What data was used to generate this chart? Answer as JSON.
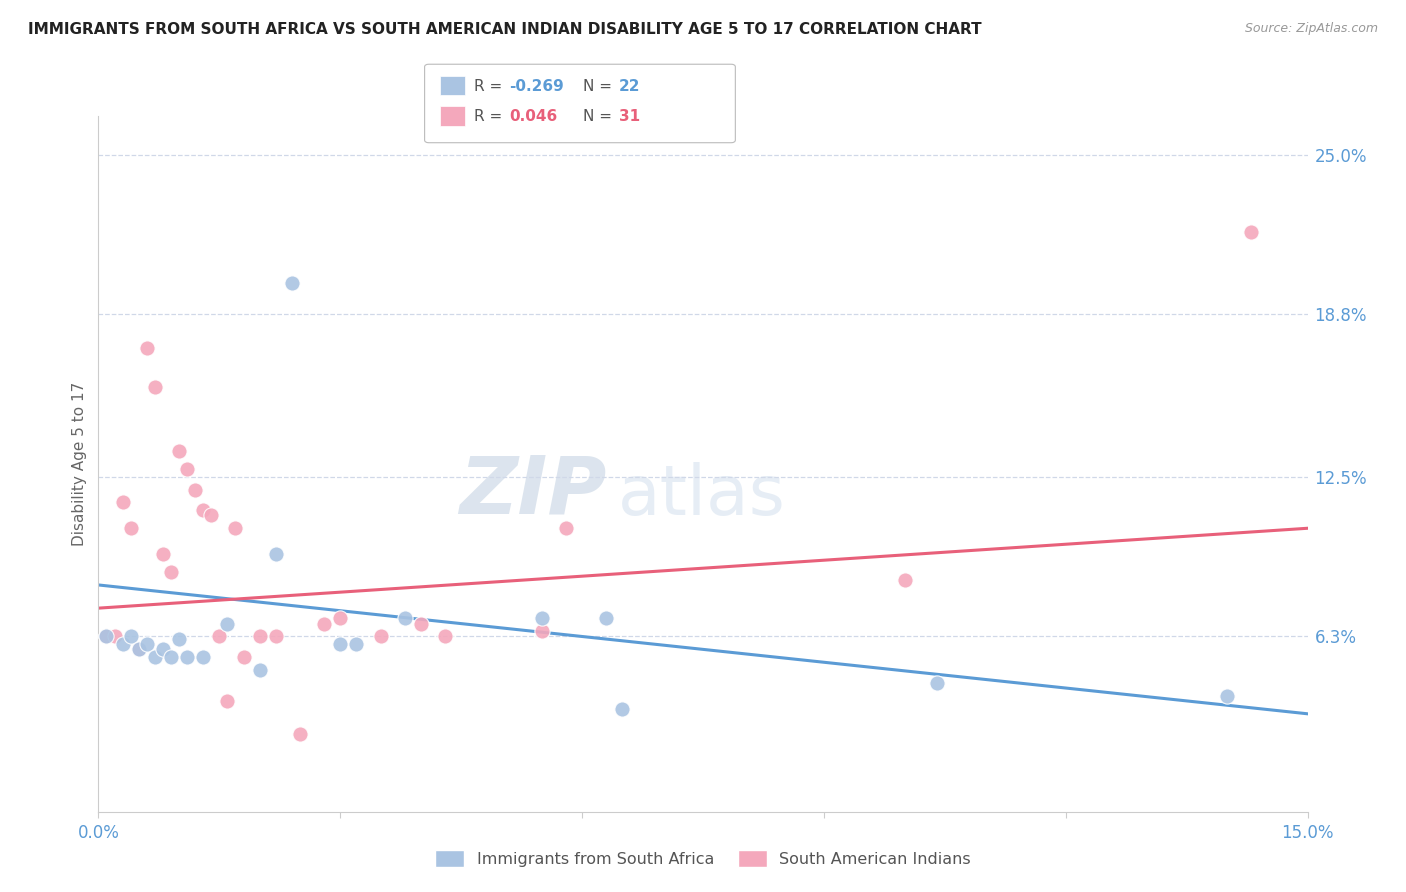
{
  "title": "IMMIGRANTS FROM SOUTH AFRICA VS SOUTH AMERICAN INDIAN DISABILITY AGE 5 TO 17 CORRELATION CHART",
  "source": "Source: ZipAtlas.com",
  "ylabel": "Disability Age 5 to 17",
  "xlim": [
    0.0,
    0.15
  ],
  "ylim": [
    -0.005,
    0.265
  ],
  "xticks": [
    0.0,
    0.03,
    0.06,
    0.09,
    0.12,
    0.15
  ],
  "xticklabels": [
    "0.0%",
    "",
    "",
    "",
    "",
    "15.0%"
  ],
  "yticks_right": [
    0.063,
    0.125,
    0.188,
    0.25
  ],
  "ytick_labels_right": [
    "6.3%",
    "12.5%",
    "18.8%",
    "25.0%"
  ],
  "blue_color": "#aac4e2",
  "pink_color": "#f4a8bc",
  "blue_line_color": "#5b9bd5",
  "pink_line_color": "#e8607a",
  "legend_blue_label": "Immigrants from South Africa",
  "legend_pink_label": "South American Indians",
  "watermark_zip": "ZIP",
  "watermark_atlas": "atlas",
  "blue_scatter_x": [
    0.001,
    0.003,
    0.004,
    0.005,
    0.006,
    0.007,
    0.008,
    0.009,
    0.01,
    0.011,
    0.013,
    0.016,
    0.02,
    0.022,
    0.024,
    0.03,
    0.032,
    0.038,
    0.055,
    0.063,
    0.065,
    0.104,
    0.14
  ],
  "blue_scatter_y": [
    0.063,
    0.06,
    0.063,
    0.058,
    0.06,
    0.055,
    0.058,
    0.055,
    0.062,
    0.055,
    0.055,
    0.068,
    0.05,
    0.095,
    0.2,
    0.06,
    0.06,
    0.07,
    0.07,
    0.07,
    0.035,
    0.045,
    0.04
  ],
  "pink_scatter_x": [
    0.001,
    0.001,
    0.002,
    0.003,
    0.004,
    0.005,
    0.006,
    0.007,
    0.008,
    0.009,
    0.01,
    0.011,
    0.012,
    0.013,
    0.014,
    0.015,
    0.016,
    0.017,
    0.018,
    0.02,
    0.022,
    0.025,
    0.028,
    0.03,
    0.035,
    0.04,
    0.043,
    0.055,
    0.058,
    0.1,
    0.143
  ],
  "pink_scatter_y": [
    0.063,
    0.063,
    0.063,
    0.115,
    0.105,
    0.058,
    0.175,
    0.16,
    0.095,
    0.088,
    0.135,
    0.128,
    0.12,
    0.112,
    0.11,
    0.063,
    0.038,
    0.105,
    0.055,
    0.063,
    0.063,
    0.025,
    0.068,
    0.07,
    0.063,
    0.068,
    0.063,
    0.065,
    0.105,
    0.085,
    0.22
  ],
  "blue_line_y_start": 0.083,
  "blue_line_y_end": 0.033,
  "pink_line_y_start": 0.074,
  "pink_line_y_end": 0.105
}
